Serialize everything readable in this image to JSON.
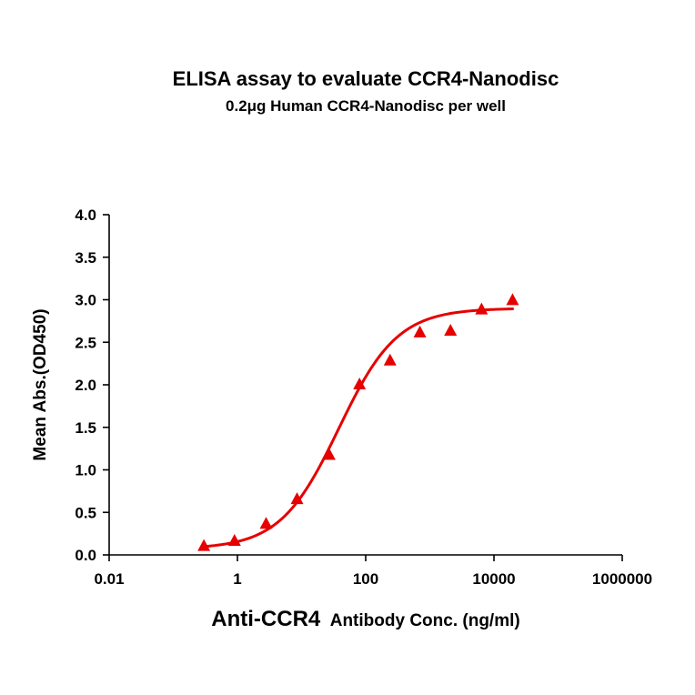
{
  "chart_data": {
    "type": "scatter",
    "title": "ELISA assay to evaluate CCR4-Nanodisc",
    "subtitle": "0.2μg Human CCR4-Nanodisc per well",
    "ylabel": "Mean Abs.(OD450)",
    "xlabel_main": "Anti-CCR4",
    "xlabel_rest": "Antibody Conc. (ng/ml)",
    "x_scale": "log",
    "xlim": [
      0.01,
      1000000
    ],
    "ylim": [
      0,
      4.0
    ],
    "x_ticks": [
      0.01,
      1,
      100,
      10000,
      1000000
    ],
    "x_tick_labels": [
      "0.01",
      "1",
      "100",
      "10000",
      "1000000"
    ],
    "y_ticks": [
      0,
      0.5,
      1.0,
      1.5,
      2.0,
      2.5,
      3.0,
      3.5,
      4.0
    ],
    "y_tick_labels": [
      "0.0",
      "0.5",
      "1.0",
      "1.5",
      "2.0",
      "2.5",
      "3.0",
      "3.5",
      "4.0"
    ],
    "series": [
      {
        "marker": "triangle",
        "color": "#e60000",
        "x": [
          0.3,
          0.9,
          2.8,
          8.5,
          27,
          80,
          240,
          700,
          2100,
          6400,
          19500
        ],
        "y": [
          0.1,
          0.16,
          0.36,
          0.65,
          1.17,
          2.0,
          2.28,
          2.61,
          2.63,
          2.88,
          2.99
        ]
      }
    ],
    "fit_curve": {
      "model": "4PL",
      "color": "#e60000",
      "bottom": 0.07,
      "top": 2.9,
      "ec50": 38,
      "hill": 0.95,
      "x_range": [
        0.3,
        19500
      ]
    }
  }
}
